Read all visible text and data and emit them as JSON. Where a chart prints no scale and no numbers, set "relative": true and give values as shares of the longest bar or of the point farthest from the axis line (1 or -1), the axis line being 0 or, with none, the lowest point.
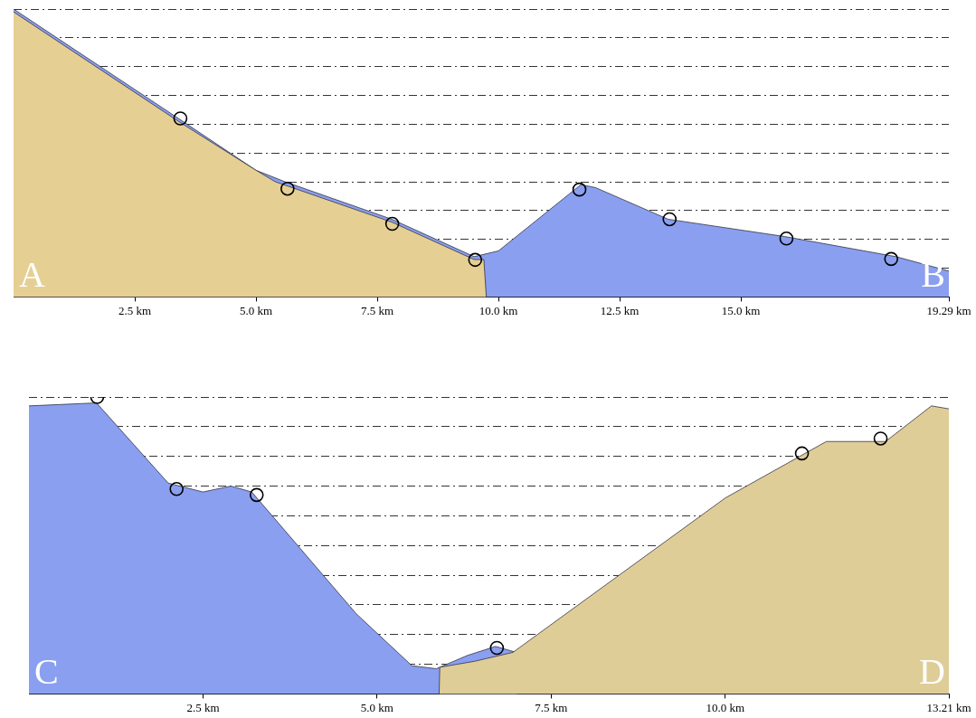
{
  "chart_data": [
    {
      "type": "area",
      "relative": true,
      "xlim": [
        0,
        19.29
      ],
      "xticks": [
        {
          "value": 2.5,
          "label": "2.5 km"
        },
        {
          "value": 5,
          "label": "5.0 km"
        },
        {
          "value": 7.5,
          "label": "7.5 km"
        },
        {
          "value": 10,
          "label": "10.0 km"
        },
        {
          "value": 12.5,
          "label": "12.5 km"
        },
        {
          "value": 15,
          "label": "15.0 km"
        },
        {
          "value": 19.29,
          "label": "19.29 km"
        }
      ],
      "tick_labels": "x",
      "grid": "y",
      "annotations": [
        "A",
        "B"
      ],
      "series": [
        {
          "color": "#8a9ff0",
          "x": [
            0,
            3.4,
            5,
            5.6,
            7.8,
            9.5,
            10,
            11.7,
            12,
            13.5,
            15.9,
            18.2,
            19.29
          ],
          "values": [
            1,
            0.62,
            0.44,
            0.4,
            0.27,
            0.14,
            0.16,
            0.39,
            0.38,
            0.27,
            0.21,
            0.14,
            0.09
          ]
        },
        {
          "color": "#e5cf93",
          "x": [
            0,
            3.4,
            5,
            5.4,
            7.8,
            9.5,
            9.7,
            9.75
          ],
          "values": [
            0.99,
            0.61,
            0.44,
            0.4,
            0.26,
            0.13,
            0.13,
            0
          ]
        },
        {
          "type": "scatter",
          "marker": "circle",
          "color": "#000000",
          "x": [
            3.44,
            5.65,
            7.81,
            9.52,
            11.67,
            13.53,
            15.94,
            18.1
          ],
          "values": [
            0.62,
            0.376,
            0.254,
            0.129,
            0.373,
            0.27,
            0.203,
            0.132
          ]
        }
      ]
    },
    {
      "type": "area",
      "relative": true,
      "xlim": [
        0,
        13.21
      ],
      "xticks": [
        {
          "value": 2.5,
          "label": "2.5 km"
        },
        {
          "value": 5,
          "label": "5.0 km"
        },
        {
          "value": 7.5,
          "label": "7.5 km"
        },
        {
          "value": 10,
          "label": "10.0 km"
        },
        {
          "value": 13.21,
          "label": "13.21 km"
        }
      ],
      "tick_labels": "x",
      "grid": "y",
      "annotations": [
        "C",
        "D"
      ],
      "series": [
        {
          "color": "#8a9ff0",
          "x": [
            0,
            0.97,
            2,
            2.5,
            2.9,
            3.2,
            4.7,
            5.5,
            5.85,
            6.3,
            6.7,
            7,
            7.01
          ],
          "values": [
            0.97,
            0.98,
            0.71,
            0.68,
            0.7,
            0.68,
            0.27,
            0.095,
            0.085,
            0.13,
            0.16,
            0.14,
            0
          ]
        },
        {
          "color": "#dfcd98",
          "x": [
            5.89,
            5.9,
            6.4,
            6.95,
            10,
            11.45,
            12.3,
            12.96,
            13.21
          ],
          "values": [
            0,
            0.09,
            0.11,
            0.14,
            0.66,
            0.85,
            0.85,
            0.97,
            0.96
          ]
        },
        {
          "type": "scatter",
          "marker": "circle",
          "color": "#000000",
          "x": [
            0.98,
            2.12,
            3.27,
            6.72,
            11.1,
            12.23
          ],
          "values": [
            1,
            0.69,
            0.67,
            0.155,
            0.81,
            0.86
          ]
        }
      ]
    }
  ]
}
